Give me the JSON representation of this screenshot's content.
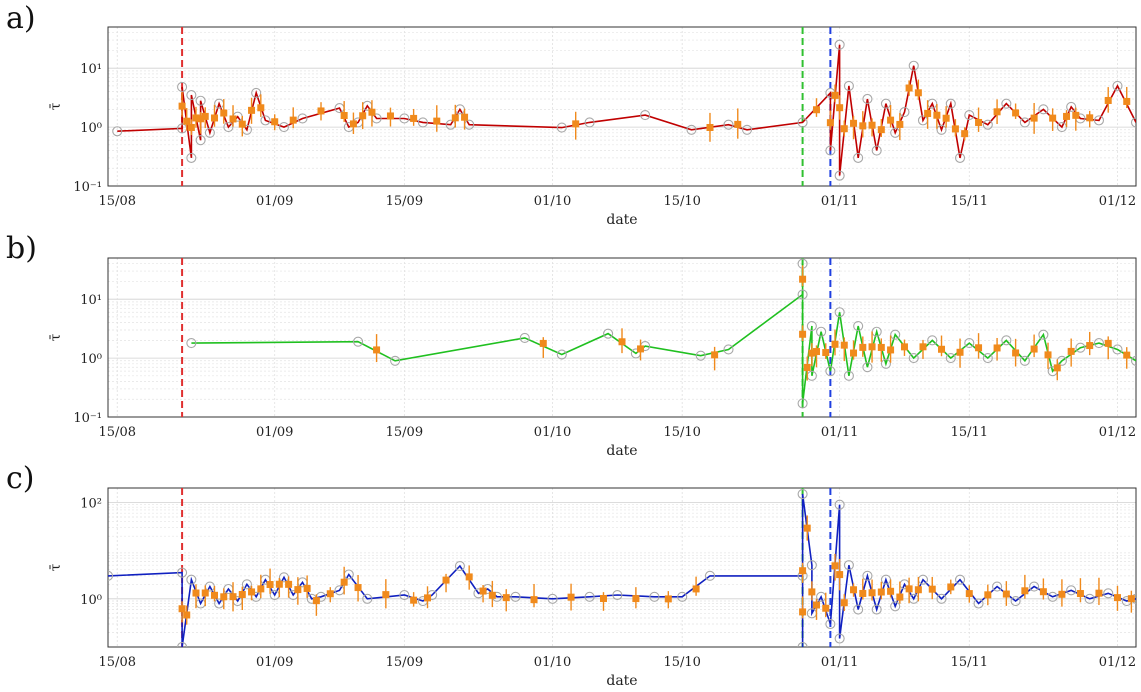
{
  "chart_data": [
    {
      "type": "line",
      "panel_label": "a)",
      "xlabel": "date",
      "ylabel": "τ̄",
      "yscale": "log",
      "ylim": [
        0.1,
        50
      ],
      "yticks": [
        {
          "value": 0.1,
          "label": "10⁻¹"
        },
        {
          "value": 1,
          "label": "10⁰"
        },
        {
          "value": 10,
          "label": "10¹"
        }
      ],
      "xlim": [
        "2000-08-14",
        "2000-12-03"
      ],
      "xticks": [
        {
          "value": "2000-08-15",
          "label": "15/08"
        },
        {
          "value": "2000-09-01",
          "label": "01/09"
        },
        {
          "value": "2000-09-15",
          "label": "15/09"
        },
        {
          "value": "2000-10-01",
          "label": "01/10"
        },
        {
          "value": "2000-10-15",
          "label": "15/10"
        },
        {
          "value": "2000-11-01",
          "label": "01/11"
        },
        {
          "value": "2000-11-15",
          "label": "15/11"
        },
        {
          "value": "2000-12-01",
          "label": "01/12"
        }
      ],
      "grid": true,
      "vlines": [
        {
          "x": "2000-08-22",
          "color": "#e03030"
        },
        {
          "x": "2000-10-28",
          "color": "#30c030"
        },
        {
          "x": "2000-10-31",
          "color": "#2040e0"
        }
      ],
      "series": [
        {
          "color": "#c00000",
          "points": [
            [
              "2000-08-15",
              0.85
            ],
            [
              "2000-08-22",
              0.95
            ],
            [
              "2000-08-22",
              4.8
            ],
            [
              "2000-08-23",
              0.3
            ],
            [
              "2000-08-23",
              3.5
            ],
            [
              "2000-08-24",
              0.6
            ],
            [
              "2000-08-24",
              2.8
            ],
            [
              "2000-08-25",
              0.8
            ],
            [
              "2000-08-26",
              2.5
            ],
            [
              "2000-08-27",
              1.0
            ],
            [
              "2000-08-28",
              1.5
            ],
            [
              "2000-08-29",
              0.9
            ],
            [
              "2000-08-30",
              3.8
            ],
            [
              "2000-08-31",
              1.3
            ],
            [
              "2000-09-02",
              1.0
            ],
            [
              "2000-09-04",
              1.4
            ],
            [
              "2000-09-08",
              2.1
            ],
            [
              "2000-09-09",
              1.0
            ],
            [
              "2000-09-10",
              1.2
            ],
            [
              "2000-09-11",
              2.3
            ],
            [
              "2000-09-12",
              1.4
            ],
            [
              "2000-09-15",
              1.4
            ],
            [
              "2000-09-17",
              1.2
            ],
            [
              "2000-09-20",
              1.1
            ],
            [
              "2000-09-21",
              2.0
            ],
            [
              "2000-09-22",
              1.1
            ],
            [
              "2000-10-02",
              0.98
            ],
            [
              "2000-10-05",
              1.2
            ],
            [
              "2000-10-11",
              1.6
            ],
            [
              "2000-10-16",
              0.9
            ],
            [
              "2000-10-20",
              1.1
            ],
            [
              "2000-10-22",
              0.9
            ],
            [
              "2000-10-28",
              1.2
            ],
            [
              "2000-10-31",
              3.8
            ],
            [
              "2000-10-31",
              0.4
            ],
            [
              "2000-11-01",
              25
            ],
            [
              "2000-11-01",
              0.15
            ],
            [
              "2000-11-02",
              5.0
            ],
            [
              "2000-11-03",
              0.3
            ],
            [
              "2000-11-04",
              3.0
            ],
            [
              "2000-11-05",
              0.4
            ],
            [
              "2000-11-06",
              2.5
            ],
            [
              "2000-11-07",
              0.8
            ],
            [
              "2000-11-08",
              1.8
            ],
            [
              "2000-11-09",
              11
            ],
            [
              "2000-11-10",
              1.3
            ],
            [
              "2000-11-11",
              2.5
            ],
            [
              "2000-11-12",
              0.9
            ],
            [
              "2000-11-13",
              2.5
            ],
            [
              "2000-11-14",
              0.3
            ],
            [
              "2000-11-15",
              1.6
            ],
            [
              "2000-11-17",
              1.1
            ],
            [
              "2000-11-19",
              2.5
            ],
            [
              "2000-11-21",
              1.2
            ],
            [
              "2000-11-23",
              2.0
            ],
            [
              "2000-11-25",
              1.0
            ],
            [
              "2000-11-26",
              2.2
            ],
            [
              "2000-11-27",
              1.4
            ],
            [
              "2000-11-29",
              1.3
            ],
            [
              "2000-12-01",
              5.0
            ],
            [
              "2000-12-03",
              1.2
            ]
          ]
        }
      ]
    },
    {
      "type": "line",
      "panel_label": "b)",
      "xlabel": "date",
      "ylabel": "τ̄",
      "yscale": "log",
      "ylim": [
        0.1,
        50
      ],
      "yticks": [
        {
          "value": 0.1,
          "label": "10⁻¹"
        },
        {
          "value": 1,
          "label": "10⁰"
        },
        {
          "value": 10,
          "label": "10¹"
        }
      ],
      "xlim": [
        "2000-08-14",
        "2000-12-03"
      ],
      "xticks": [
        {
          "value": "2000-08-15",
          "label": "15/08"
        },
        {
          "value": "2000-09-01",
          "label": "01/09"
        },
        {
          "value": "2000-09-15",
          "label": "15/09"
        },
        {
          "value": "2000-10-01",
          "label": "01/10"
        },
        {
          "value": "2000-10-15",
          "label": "15/10"
        },
        {
          "value": "2000-11-01",
          "label": "01/11"
        },
        {
          "value": "2000-11-15",
          "label": "15/11"
        },
        {
          "value": "2000-12-01",
          "label": "01/12"
        }
      ],
      "grid": true,
      "vlines": [
        {
          "x": "2000-08-22",
          "color": "#e03030"
        },
        {
          "x": "2000-10-28",
          "color": "#30c030"
        },
        {
          "x": "2000-10-31",
          "color": "#2040e0"
        }
      ],
      "series": [
        {
          "color": "#20c020",
          "points": [
            [
              "2000-08-23",
              1.8
            ],
            [
              "2000-09-10",
              1.9
            ],
            [
              "2000-09-14",
              0.9
            ],
            [
              "2000-09-28",
              2.2
            ],
            [
              "2000-10-02",
              1.15
            ],
            [
              "2000-10-07",
              2.6
            ],
            [
              "2000-10-10",
              1.2
            ],
            [
              "2000-10-11",
              1.6
            ],
            [
              "2000-10-17",
              1.1
            ],
            [
              "2000-10-20",
              1.4
            ],
            [
              "2000-10-28",
              12
            ],
            [
              "2000-10-28",
              40
            ],
            [
              "2000-10-28",
              0.17
            ],
            [
              "2000-10-29",
              3.5
            ],
            [
              "2000-10-29",
              0.5
            ],
            [
              "2000-10-30",
              2.8
            ],
            [
              "2000-10-31",
              0.6
            ],
            [
              "2000-11-01",
              6.0
            ],
            [
              "2000-11-02",
              0.5
            ],
            [
              "2000-11-03",
              3.5
            ],
            [
              "2000-11-04",
              0.7
            ],
            [
              "2000-11-05",
              2.8
            ],
            [
              "2000-11-06",
              0.8
            ],
            [
              "2000-11-07",
              2.5
            ],
            [
              "2000-11-09",
              1.0
            ],
            [
              "2000-11-11",
              2.0
            ],
            [
              "2000-11-13",
              1.0
            ],
            [
              "2000-11-15",
              1.8
            ],
            [
              "2000-11-17",
              1.0
            ],
            [
              "2000-11-19",
              2.0
            ],
            [
              "2000-11-21",
              0.9
            ],
            [
              "2000-11-23",
              2.5
            ],
            [
              "2000-11-24",
              0.6
            ],
            [
              "2000-11-25",
              0.9
            ],
            [
              "2000-11-27",
              1.5
            ],
            [
              "2000-11-29",
              1.8
            ],
            [
              "2000-12-01",
              1.4
            ],
            [
              "2000-12-03",
              0.9
            ]
          ]
        }
      ]
    },
    {
      "type": "line",
      "panel_label": "c)",
      "xlabel": "date",
      "ylabel": "τ̄",
      "yscale": "log",
      "ylim": [
        0.1,
        200
      ],
      "yticks": [
        {
          "value": 1,
          "label": "10⁰"
        },
        {
          "value": 100,
          "label": "10²"
        }
      ],
      "xlim": [
        "2000-08-14",
        "2000-12-03"
      ],
      "xticks": [
        {
          "value": "2000-08-15",
          "label": "15/08"
        },
        {
          "value": "2000-09-01",
          "label": "01/09"
        },
        {
          "value": "2000-09-15",
          "label": "15/09"
        },
        {
          "value": "2000-10-01",
          "label": "01/10"
        },
        {
          "value": "2000-10-15",
          "label": "15/10"
        },
        {
          "value": "2000-11-01",
          "label": "01/11"
        },
        {
          "value": "2000-11-15",
          "label": "15/11"
        },
        {
          "value": "2000-12-01",
          "label": "01/12"
        }
      ],
      "grid": true,
      "vlines": [
        {
          "x": "2000-08-22",
          "color": "#e03030"
        },
        {
          "x": "2000-10-28",
          "color": "#30c030"
        },
        {
          "x": "2000-10-31",
          "color": "#2040e0"
        }
      ],
      "series": [
        {
          "color": "#1020c0",
          "points": [
            [
              "2000-08-14",
              3.0
            ],
            [
              "2000-08-22",
              3.5
            ],
            [
              "2000-08-22",
              0.1
            ],
            [
              "2000-08-23",
              2.5
            ],
            [
              "2000-08-24",
              0.8
            ],
            [
              "2000-08-25",
              1.8
            ],
            [
              "2000-08-26",
              0.8
            ],
            [
              "2000-08-27",
              1.6
            ],
            [
              "2000-08-28",
              0.9
            ],
            [
              "2000-08-29",
              2.0
            ],
            [
              "2000-08-30",
              1.1
            ],
            [
              "2000-08-31",
              2.5
            ],
            [
              "2000-09-01",
              1.2
            ],
            [
              "2000-09-02",
              2.8
            ],
            [
              "2000-09-03",
              1.2
            ],
            [
              "2000-09-04",
              2.2
            ],
            [
              "2000-09-05",
              1.0
            ],
            [
              "2000-09-06",
              1.1
            ],
            [
              "2000-09-08",
              1.5
            ],
            [
              "2000-09-09",
              3.2
            ],
            [
              "2000-09-11",
              1.0
            ],
            [
              "2000-09-15",
              1.2
            ],
            [
              "2000-09-17",
              0.9
            ],
            [
              "2000-09-18",
              1.2
            ],
            [
              "2000-09-21",
              4.8
            ],
            [
              "2000-09-23",
              1.3
            ],
            [
              "2000-09-24",
              1.6
            ],
            [
              "2000-09-25",
              1.1
            ],
            [
              "2000-09-27",
              1.1
            ],
            [
              "2000-10-01",
              1.0
            ],
            [
              "2000-10-05",
              1.1
            ],
            [
              "2000-10-08",
              1.2
            ],
            [
              "2000-10-12",
              1.1
            ],
            [
              "2000-10-15",
              1.1
            ],
            [
              "2000-10-18",
              3.0
            ],
            [
              "2000-10-28",
              3.0
            ],
            [
              "2000-10-28",
              0.1
            ],
            [
              "2000-10-28",
              150
            ],
            [
              "2000-10-29",
              5.0
            ],
            [
              "2000-10-29",
              0.5
            ],
            [
              "2000-10-30",
              1.1
            ],
            [
              "2000-10-31",
              0.3
            ],
            [
              "2000-11-01",
              90
            ],
            [
              "2000-11-01",
              0.15
            ],
            [
              "2000-11-02",
              5.0
            ],
            [
              "2000-11-03",
              0.6
            ],
            [
              "2000-11-04",
              3.0
            ],
            [
              "2000-11-05",
              0.6
            ],
            [
              "2000-11-06",
              2.5
            ],
            [
              "2000-11-07",
              0.7
            ],
            [
              "2000-11-08",
              2.0
            ],
            [
              "2000-11-09",
              1.0
            ],
            [
              "2000-11-10",
              2.5
            ],
            [
              "2000-11-12",
              1.0
            ],
            [
              "2000-11-14",
              2.5
            ],
            [
              "2000-11-16",
              0.8
            ],
            [
              "2000-11-18",
              1.8
            ],
            [
              "2000-11-20",
              0.9
            ],
            [
              "2000-11-22",
              1.8
            ],
            [
              "2000-11-24",
              1.1
            ],
            [
              "2000-11-26",
              1.5
            ],
            [
              "2000-11-28",
              1.0
            ],
            [
              "2000-11-30",
              1.3
            ],
            [
              "2000-12-02",
              0.9
            ],
            [
              "2000-12-03",
              1.0
            ]
          ]
        }
      ]
    }
  ]
}
